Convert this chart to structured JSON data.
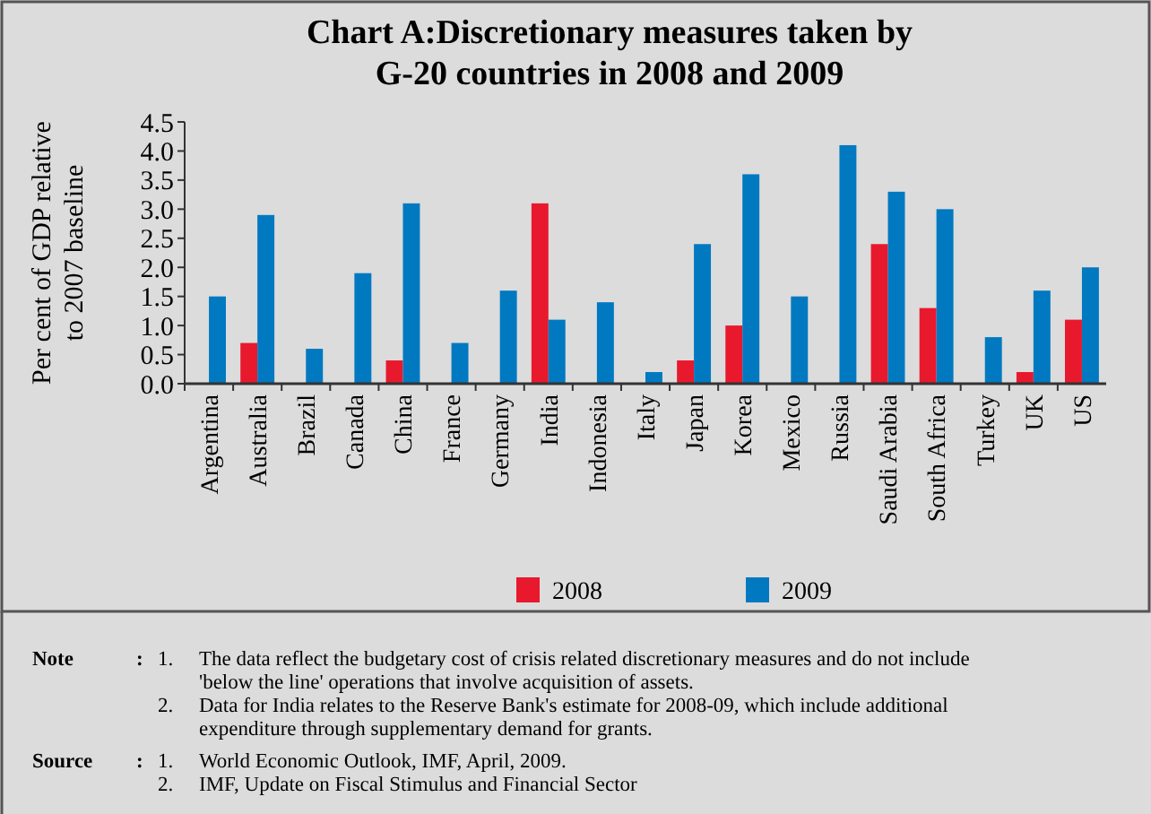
{
  "chart_data": {
    "type": "bar",
    "title": "Chart A:Discretionary measures taken by\nG-20 countries in 2008 and 2009",
    "ylabel": "Per cent of GDP relative\nto 2007 baseline",
    "categories": [
      "Argentina",
      "Australia",
      "Brazil",
      "Canada",
      "China",
      "France",
      "Germany",
      "India",
      "Indonesia",
      "Italy",
      "Japan",
      "Korea",
      "Mexico",
      "Russia",
      "Saudi Arabia",
      "South Africa",
      "Turkey",
      "UK",
      "US"
    ],
    "series": [
      {
        "name": "2008",
        "color": "#e8192c",
        "values": [
          0,
          0.7,
          0,
          0,
          0.4,
          0,
          0,
          3.1,
          0,
          0,
          0.4,
          1.0,
          0,
          0,
          2.4,
          1.3,
          0,
          0.2,
          1.1
        ]
      },
      {
        "name": "2009",
        "color": "#0079c1",
        "values": [
          1.5,
          2.9,
          0.6,
          1.9,
          3.1,
          0.7,
          1.6,
          1.1,
          1.4,
          0.2,
          2.4,
          3.6,
          1.5,
          4.1,
          3.3,
          3.0,
          0.8,
          1.6,
          2.0
        ]
      }
    ],
    "ylim": [
      0,
      4.5
    ],
    "yticks": [
      {
        "value": 0,
        "label": "0.0"
      },
      {
        "value": 0.5,
        "label": "0.5"
      },
      {
        "value": 1,
        "label": "1.0"
      },
      {
        "value": 1.5,
        "label": "1.5"
      },
      {
        "value": 2,
        "label": "2.0"
      },
      {
        "value": 2.5,
        "label": "2.5"
      },
      {
        "value": 3,
        "label": "3.0"
      },
      {
        "value": 3.5,
        "label": "3.5"
      },
      {
        "value": 4,
        "label": "4.0"
      },
      {
        "value": 4.5,
        "label": "4.5"
      }
    ],
    "grid": false,
    "legend": "bottom",
    "annotations": [
      "Note : 1. The data reflect the budgetary cost of crisis related discretionary measures and do not include 'below the line' operations that involve acquisition of assets.",
      "2. Data for India relates to the Reserve Bank's estimate for 2008-09, which include additional expenditure through supplementary demand for grants.",
      "Source : 1. World Economic Outlook, IMF, April, 2009.",
      "2. IMF, Update on Fiscal Stimulus and Financial Sector"
    ]
  }
}
